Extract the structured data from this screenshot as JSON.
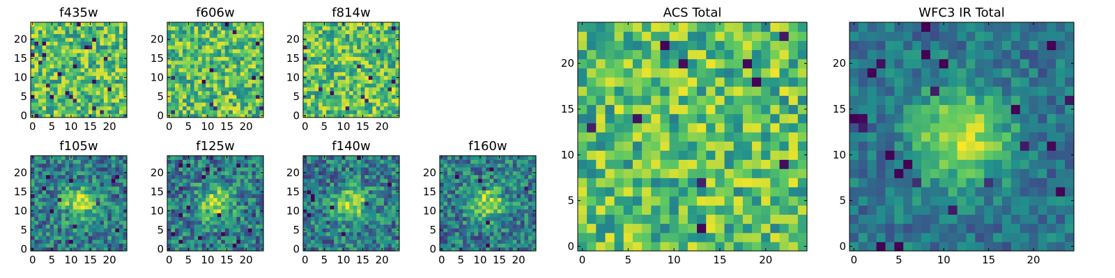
{
  "figure": {
    "description": "Grid of 25x25 pixel image-cutout heatmaps (viridis colormap) of a source in several HST filters plus stacked totals"
  },
  "colormap": "viridis",
  "viridis_stops": [
    "#440154",
    "#3b528b",
    "#21918c",
    "#5ec962",
    "#fde725"
  ],
  "chart_data": [
    {
      "type": "heatmap",
      "title": "f435w",
      "shape": [
        25,
        25
      ],
      "x_ticks": [
        "0",
        "5",
        "10",
        "15",
        "20"
      ],
      "y_ticks": [
        "0",
        "5",
        "10",
        "15",
        "20"
      ],
      "xlim": [
        0,
        25
      ],
      "ylim": [
        0,
        25
      ],
      "structure": "noise"
    },
    {
      "type": "heatmap",
      "title": "f606w",
      "shape": [
        25,
        25
      ],
      "x_ticks": [
        "0",
        "5",
        "10",
        "15",
        "20"
      ],
      "y_ticks": [
        "0",
        "5",
        "10",
        "15",
        "20"
      ],
      "xlim": [
        0,
        25
      ],
      "ylim": [
        0,
        25
      ],
      "structure": "noise"
    },
    {
      "type": "heatmap",
      "title": "f814w",
      "shape": [
        25,
        25
      ],
      "x_ticks": [
        "0",
        "5",
        "10",
        "15",
        "20"
      ],
      "y_ticks": [
        "0",
        "5",
        "10",
        "15",
        "20"
      ],
      "xlim": [
        0,
        25
      ],
      "ylim": [
        0,
        25
      ],
      "structure": "noise"
    },
    {
      "type": "heatmap",
      "title": "ACS Total",
      "shape": [
        25,
        25
      ],
      "x_ticks": [
        "0",
        "5",
        "10",
        "15",
        "20"
      ],
      "y_ticks": [
        "0",
        "5",
        "10",
        "15",
        "20"
      ],
      "xlim": [
        0,
        25
      ],
      "ylim": [
        0,
        25
      ],
      "structure": "noise"
    },
    {
      "type": "heatmap",
      "title": "f105w",
      "shape": [
        25,
        25
      ],
      "x_ticks": [
        "0",
        "5",
        "10",
        "15",
        "20"
      ],
      "y_ticks": [
        "0",
        "5",
        "10",
        "15",
        "20"
      ],
      "xlim": [
        0,
        25
      ],
      "ylim": [
        0,
        25
      ],
      "structure": "central source",
      "source_center": [
        12,
        12
      ]
    },
    {
      "type": "heatmap",
      "title": "f125w",
      "shape": [
        25,
        25
      ],
      "x_ticks": [
        "0",
        "5",
        "10",
        "15",
        "20"
      ],
      "y_ticks": [
        "0",
        "5",
        "10",
        "15",
        "20"
      ],
      "xlim": [
        0,
        25
      ],
      "ylim": [
        0,
        25
      ],
      "structure": "central source",
      "source_center": [
        12,
        12
      ]
    },
    {
      "type": "heatmap",
      "title": "f140w",
      "shape": [
        25,
        25
      ],
      "x_ticks": [
        "0",
        "5",
        "10",
        "15",
        "20"
      ],
      "y_ticks": [
        "0",
        "5",
        "10",
        "15",
        "20"
      ],
      "xlim": [
        0,
        25
      ],
      "ylim": [
        0,
        25
      ],
      "structure": "central source",
      "source_center": [
        12,
        12
      ]
    },
    {
      "type": "heatmap",
      "title": "f160w",
      "shape": [
        25,
        25
      ],
      "x_ticks": [
        "0",
        "5",
        "10",
        "15",
        "20"
      ],
      "y_ticks": [
        "0",
        "5",
        "10",
        "15",
        "20"
      ],
      "xlim": [
        0,
        25
      ],
      "ylim": [
        0,
        25
      ],
      "structure": "central source",
      "source_center": [
        12,
        12
      ]
    },
    {
      "type": "heatmap",
      "title": "WFC3 IR Total",
      "shape": [
        25,
        25
      ],
      "x_ticks": [
        "0",
        "5",
        "10",
        "15",
        "20"
      ],
      "y_ticks": [
        "0",
        "5",
        "10",
        "15",
        "20"
      ],
      "xlim": [
        0,
        25
      ],
      "ylim": [
        0,
        25
      ],
      "structure": "central source",
      "source_center": [
        12,
        12
      ]
    }
  ]
}
